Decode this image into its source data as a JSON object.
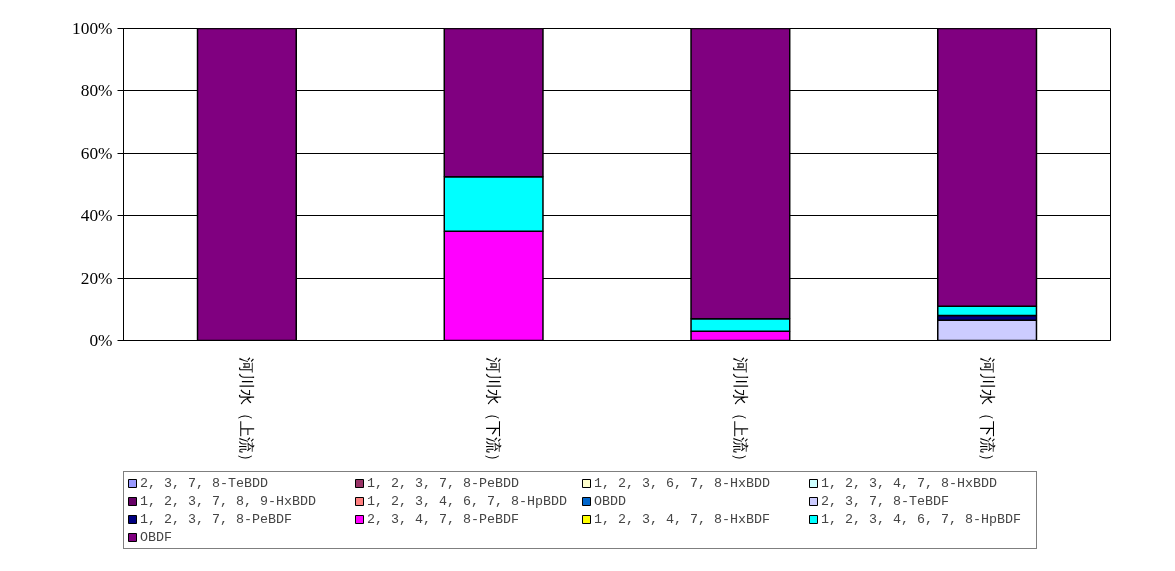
{
  "chart_data": {
    "type": "bar",
    "stacked": true,
    "categories": [
      "河川水（上流）",
      "河川水（下流）",
      "河川水（上流）",
      "河川水（下流）"
    ],
    "ylim": [
      0,
      100
    ],
    "yticks": [
      {
        "value": 0,
        "label": "0%"
      },
      {
        "value": 20,
        "label": "20%"
      },
      {
        "value": 40,
        "label": "40%"
      },
      {
        "value": 60,
        "label": "60%"
      },
      {
        "value": 80,
        "label": "80%"
      },
      {
        "value": 100,
        "label": "100%"
      }
    ],
    "grid": "y",
    "legend": "bottom",
    "series": [
      {
        "name": "2, 3, 7, 8-TeBDD",
        "color": "#9999ff",
        "values": [
          null,
          null,
          null,
          null
        ]
      },
      {
        "name": "1, 2, 3, 7, 8-PeBDD",
        "color": "#993366",
        "values": [
          null,
          null,
          null,
          null
        ]
      },
      {
        "name": "1, 2, 3, 6, 7, 8-HxBDD",
        "color": "#ffffcc",
        "values": [
          null,
          null,
          null,
          null
        ]
      },
      {
        "name": "1, 2, 3, 4, 7, 8-HxBDD",
        "color": "#ccffff",
        "values": [
          null,
          null,
          null,
          null
        ]
      },
      {
        "name": "1, 2, 3, 7, 8, 9-HxBDD",
        "color": "#660066",
        "values": [
          null,
          null,
          null,
          null
        ]
      },
      {
        "name": "1, 2, 3, 4, 6, 7, 8-HpBDD",
        "color": "#ff8080",
        "values": [
          null,
          null,
          null,
          null
        ]
      },
      {
        "name": "OBDD",
        "color": "#0066cc",
        "values": [
          null,
          null,
          null,
          null
        ]
      },
      {
        "name": "2, 3, 7, 8-TeBDF",
        "color": "#ccccff",
        "values": [
          null,
          null,
          null,
          6.5
        ]
      },
      {
        "name": "1, 2, 3, 7, 8-PeBDF",
        "color": "#000080",
        "values": [
          null,
          null,
          null,
          1.5
        ]
      },
      {
        "name": "2, 3, 4, 7, 8-PeBDF",
        "color": "#ff00ff",
        "values": [
          null,
          35,
          3,
          null
        ]
      },
      {
        "name": "1, 2, 3, 4, 7, 8-HxBDF",
        "color": "#ffff00",
        "values": [
          null,
          null,
          null,
          null
        ]
      },
      {
        "name": "1, 2, 3, 4, 6, 7, 8-HpBDF",
        "color": "#00ffff",
        "values": [
          null,
          17.5,
          4,
          3
        ]
      },
      {
        "name": "OBDF",
        "color": "#800080",
        "values": [
          100,
          47.5,
          93,
          89
        ]
      }
    ]
  }
}
